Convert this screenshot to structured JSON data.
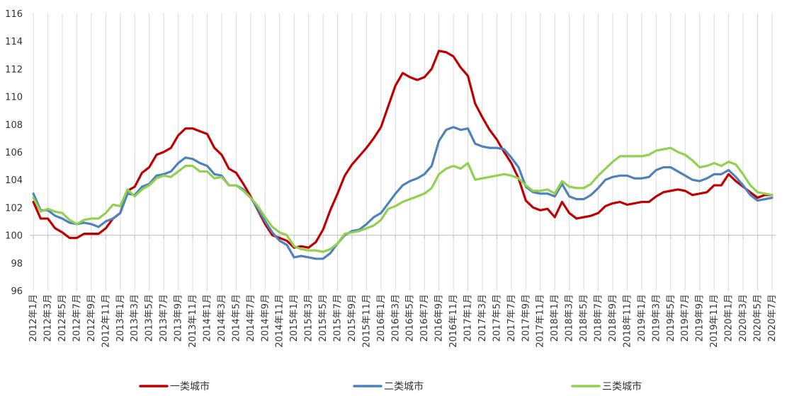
{
  "chart_data": {
    "type": "line",
    "title": "",
    "xlabel": "",
    "ylabel": "",
    "ylim": [
      96,
      116
    ],
    "yticks": [
      96,
      98,
      100,
      102,
      104,
      106,
      108,
      110,
      112,
      114,
      116
    ],
    "grid": "vertical",
    "legend_position": "bottom",
    "x_tick_labels": [
      "2012年1月",
      "2012年3月",
      "2012年5月",
      "2012年7月",
      "2012年9月",
      "2012年11月",
      "2013年1月",
      "2013年3月",
      "2013年5月",
      "2013年7月",
      "2013年9月",
      "2013年11月",
      "2014年1月",
      "2014年3月",
      "2014年5月",
      "2014年7月",
      "2014年9月",
      "2014年11月",
      "2015年1月",
      "2015年3月",
      "2015年5月",
      "2015年7月",
      "2015年9月",
      "2015年11月",
      "2016年1月",
      "2016年3月",
      "2016年5月",
      "2016年7月",
      "2016年9月",
      "2016年11月",
      "2017年1月",
      "2017年3月",
      "2017年5月",
      "2017年7月",
      "2017年9月",
      "2017年11月",
      "2018年1月",
      "2018年3月",
      "2018年5月",
      "2018年7月",
      "2018年9月",
      "2018年11月",
      "2019年1月",
      "2019年3月",
      "2019年5月",
      "2019年7月",
      "2019年9月",
      "2019年11月",
      "2020年1月",
      "2020年3月",
      "2020年5月",
      "2020年7月"
    ],
    "x_start": "2012-01",
    "x_end": "2020-07",
    "series": [
      {
        "name": "一类城市",
        "color": "#c00000",
        "values": [
          102.4,
          101.2,
          101.2,
          100.5,
          100.2,
          99.8,
          99.8,
          100.1,
          100.1,
          100.1,
          100.5,
          101.2,
          101.6,
          103.2,
          103.5,
          104.5,
          104.9,
          105.8,
          106.0,
          106.3,
          107.2,
          107.7,
          107.7,
          107.5,
          107.3,
          106.3,
          105.8,
          104.8,
          104.5,
          103.7,
          102.8,
          101.8,
          100.8,
          100.0,
          99.8,
          99.6,
          99.1,
          99.2,
          99.1,
          99.5,
          100.4,
          101.8,
          103.0,
          104.3,
          105.1,
          105.7,
          106.3,
          107.0,
          107.8,
          109.3,
          110.8,
          111.7,
          111.4,
          111.2,
          111.4,
          112.0,
          113.3,
          113.2,
          112.9,
          112.1,
          111.5,
          109.5,
          108.5,
          107.6,
          106.9,
          106.0,
          105.2,
          104.1,
          102.5,
          102.0,
          101.8,
          101.9,
          101.3,
          102.4,
          101.6,
          101.2,
          101.3,
          101.4,
          101.6,
          102.1,
          102.3,
          102.4,
          102.2,
          102.3,
          102.4,
          102.4,
          102.8,
          103.1,
          103.2,
          103.3,
          103.2,
          102.9,
          103.0,
          103.1,
          103.6,
          103.6,
          104.4,
          103.9,
          103.5,
          103.1,
          102.7,
          102.9,
          102.9
        ]
      },
      {
        "name": "二类城市",
        "color": "#4f81bd",
        "values": [
          103.0,
          101.8,
          101.8,
          101.4,
          101.2,
          100.9,
          100.8,
          100.9,
          100.8,
          100.6,
          101.0,
          101.2,
          101.6,
          103.0,
          102.9,
          103.5,
          103.7,
          104.3,
          104.4,
          104.6,
          105.2,
          105.6,
          105.5,
          105.2,
          105.0,
          104.4,
          104.3,
          103.6,
          103.6,
          103.3,
          102.7,
          101.9,
          101.0,
          100.2,
          99.6,
          99.3,
          98.4,
          98.5,
          98.4,
          98.3,
          98.3,
          98.7,
          99.4,
          100.0,
          100.3,
          100.4,
          100.8,
          101.3,
          101.6,
          102.3,
          103.0,
          103.6,
          103.9,
          104.1,
          104.4,
          105.0,
          106.8,
          107.6,
          107.8,
          107.6,
          107.7,
          106.6,
          106.4,
          106.3,
          106.3,
          106.2,
          105.6,
          104.9,
          103.5,
          103.1,
          103.0,
          103.0,
          102.8,
          103.7,
          102.8,
          102.6,
          102.6,
          102.9,
          103.4,
          104.0,
          104.2,
          104.3,
          104.3,
          104.1,
          104.1,
          104.2,
          104.7,
          104.9,
          104.9,
          104.6,
          104.3,
          104.0,
          103.9,
          104.1,
          104.4,
          104.4,
          104.7,
          104.2,
          103.6,
          102.9,
          102.5,
          102.6,
          102.7
        ]
      },
      {
        "name": "三类城市",
        "color": "#92d050",
        "values": [
          102.7,
          101.7,
          101.9,
          101.7,
          101.6,
          101.1,
          100.8,
          101.1,
          101.2,
          101.2,
          101.6,
          102.2,
          102.1,
          103.3,
          102.8,
          103.3,
          103.6,
          104.1,
          104.3,
          104.2,
          104.6,
          105.0,
          105.0,
          104.6,
          104.6,
          104.1,
          104.2,
          103.6,
          103.6,
          103.2,
          102.7,
          102.1,
          101.3,
          100.6,
          100.2,
          100.0,
          99.2,
          99.0,
          98.9,
          98.9,
          98.8,
          99.0,
          99.4,
          100.1,
          100.2,
          100.3,
          100.5,
          100.7,
          101.1,
          101.9,
          102.1,
          102.4,
          102.6,
          102.8,
          103.0,
          103.4,
          104.4,
          104.8,
          105.0,
          104.8,
          105.2,
          104.0,
          104.1,
          104.2,
          104.3,
          104.4,
          104.3,
          104.1,
          103.6,
          103.2,
          103.2,
          103.3,
          103.0,
          103.9,
          103.5,
          103.4,
          103.4,
          103.7,
          104.3,
          104.8,
          105.3,
          105.7,
          105.7,
          105.7,
          105.7,
          105.8,
          106.1,
          106.2,
          106.3,
          106.0,
          105.8,
          105.4,
          104.9,
          105.0,
          105.2,
          105.0,
          105.3,
          105.1,
          104.4,
          103.6,
          103.1,
          103.0,
          102.9
        ]
      }
    ]
  }
}
